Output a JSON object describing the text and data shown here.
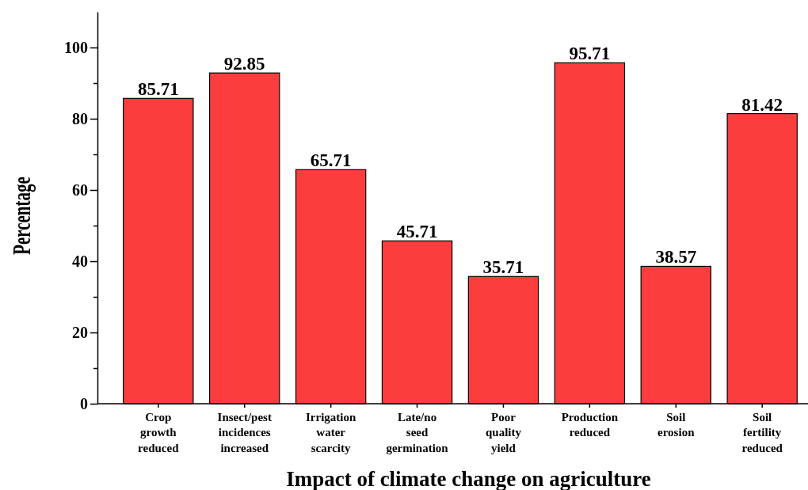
{
  "chart_data": {
    "type": "bar",
    "xlabel": "Impact of climate change on agriculture",
    "ylabel": "Percentage",
    "categories": [
      "Crop growth reduced",
      "Insect/pest incidences increased",
      "Irrigation water scarcity",
      "Late/no seed germination",
      "Poor quality yield",
      "Production reduced",
      "Soil erosion",
      "Soil fertility reduced"
    ],
    "values": [
      85.71,
      92.85,
      65.71,
      45.71,
      35.71,
      95.71,
      38.57,
      81.42
    ],
    "color": "#fc3d3d",
    "data_labels": true,
    "ylim": [
      0,
      110
    ],
    "yticks": [
      0,
      {
        "value": 10,
        "label": null
      },
      20,
      {
        "value": 30,
        "label": null
      },
      40,
      {
        "value": 50,
        "label": null
      },
      60,
      {
        "value": 70,
        "label": null
      },
      80,
      {
        "value": 90,
        "label": null
      },
      100
    ],
    "grid": false
  }
}
